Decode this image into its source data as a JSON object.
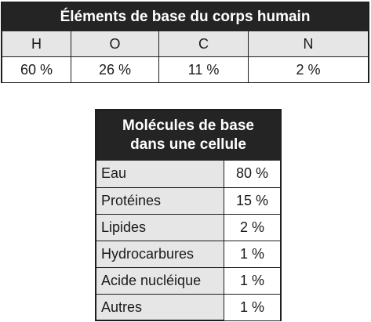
{
  "elements_table": {
    "title": "Éléments de base du corps humain",
    "headers": [
      "H",
      "O",
      "C",
      "N"
    ],
    "values": [
      "60 %",
      "26 %",
      "11 %",
      "2 %"
    ]
  },
  "molecules_table": {
    "title_line1": "Molécules de base",
    "title_line2": "dans une cellule",
    "rows": [
      {
        "name": "Eau",
        "value": "80 %"
      },
      {
        "name": "Protéines",
        "value": "15 %"
      },
      {
        "name": "Lipides",
        "value": "2 %"
      },
      {
        "name": "Hydrocarbures",
        "value": "1 %"
      },
      {
        "name": "Acide nucléique",
        "value": "1 %"
      },
      {
        "name": "Autres",
        "value": "1 %"
      }
    ]
  },
  "colors": {
    "title_background": "#242424",
    "label_background": "#e6e6e6",
    "value_background": "#ffffff",
    "border": "#1e1e1e"
  }
}
